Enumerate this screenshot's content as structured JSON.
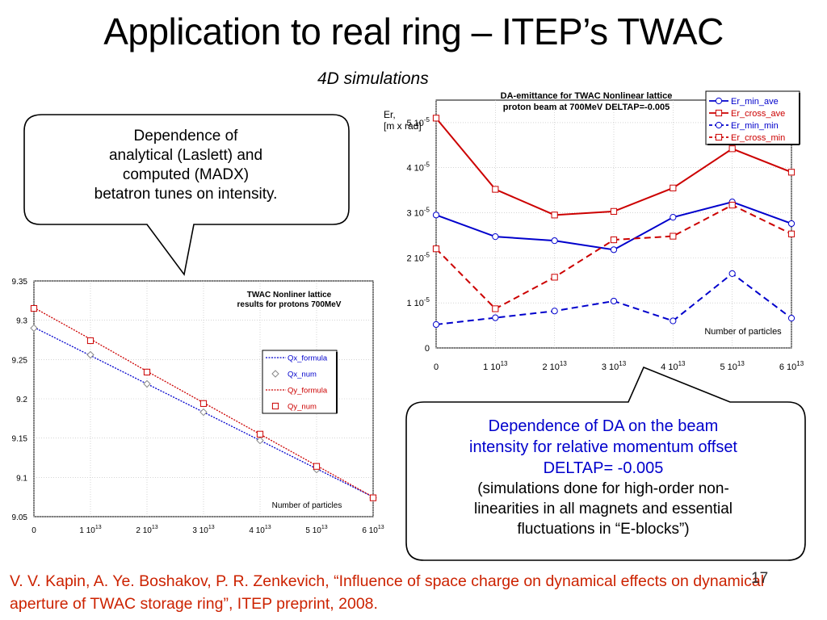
{
  "slide": {
    "title": "Application to real ring – ITEP’s TWAC",
    "subtitle": "4D simulations",
    "page_number": "17",
    "reference": "V. V. Kapin, A. Ye. Boshakov, P. R. Zenkevich, “Influence of space charge on dynamical effects on dynamical aperture of TWAC storage ring”, ITEP preprint, 2008."
  },
  "callout_left": {
    "lines": [
      "Dependence of",
      "analytical (Laslett) and",
      "computed (MADX)",
      "betatron tunes on intensity."
    ]
  },
  "callout_right": {
    "blue_lines": [
      "Dependence of DA on the beam",
      "intensity for relative momentum offset",
      "DELTAP=  -0.005"
    ],
    "black_lines": [
      "(simulations done for high-order non-",
      "linearities in all magnets and essential",
      "fluctuations in “E-blocks”)"
    ]
  },
  "colors": {
    "blue": "#0000cc",
    "red": "#cc0000",
    "reference": "#cc2200"
  },
  "chart_data": [
    {
      "type": "line",
      "title": "TWAC Nonliner lattice\nresults for protons 700MeV",
      "xlabel": "Number of particles",
      "ylabel": "",
      "x": [
        0,
        10000000000000.0,
        20000000000000.0,
        30000000000000.0,
        40000000000000.0,
        50000000000000.0,
        60000000000000.0
      ],
      "xticks": [
        {
          "pre": "0",
          "sup": ""
        },
        {
          "pre": "1 10",
          "sup": "13"
        },
        {
          "pre": "2 10",
          "sup": "13"
        },
        {
          "pre": "3 10",
          "sup": "13"
        },
        {
          "pre": "4 10",
          "sup": "13"
        },
        {
          "pre": "5 10",
          "sup": "13"
        },
        {
          "pre": "6 10",
          "sup": "13"
        }
      ],
      "yticks": [
        "9.05",
        "9.1",
        "9.15",
        "9.2",
        "9.25",
        "9.3",
        "9.35"
      ],
      "ylim": [
        9.05,
        9.35
      ],
      "xlim": [
        0,
        60000000000000.0
      ],
      "legend_position": "right",
      "series": [
        {
          "name": "Qx_formula",
          "color": "#0000cc",
          "style": "dotted-line",
          "values": [
            9.291,
            9.255,
            9.219,
            9.183,
            9.147,
            9.111,
            9.075
          ]
        },
        {
          "name": "Qx_num",
          "color": "#0000cc",
          "style": "diamond-marker",
          "values": [
            9.29,
            9.256,
            9.219,
            9.183,
            9.147,
            9.11,
            9.074
          ]
        },
        {
          "name": "Qy_formula",
          "color": "#cc0000",
          "style": "dotted-line",
          "values": [
            9.316,
            9.276,
            9.235,
            9.195,
            9.155,
            9.115,
            9.075
          ]
        },
        {
          "name": "Qy_num",
          "color": "#cc0000",
          "style": "square-marker",
          "values": [
            9.315,
            9.274,
            9.234,
            9.194,
            9.155,
            9.114,
            9.074
          ]
        }
      ]
    },
    {
      "type": "line",
      "title": "DA-emittance  for TWAC Nonlinear lattice\nproton beam at 700MeV DELTAP=-0.005",
      "xlabel": "Number of particles",
      "ylabel": "Er,\n[m x rad]",
      "x": [
        0,
        10000000000000.0,
        20000000000000.0,
        30000000000000.0,
        40000000000000.0,
        50000000000000.0,
        60000000000000.0
      ],
      "xticks": [
        {
          "pre": "0",
          "sup": ""
        },
        {
          "pre": "1 10",
          "sup": "13"
        },
        {
          "pre": "2 10",
          "sup": "13"
        },
        {
          "pre": "3 10",
          "sup": "13"
        },
        {
          "pre": "4 10",
          "sup": "13"
        },
        {
          "pre": "5 10",
          "sup": "13"
        },
        {
          "pre": "6 10",
          "sup": "13"
        }
      ],
      "yticks": [
        {
          "pre": "0",
          "sup": ""
        },
        {
          "pre": "1 10",
          "sup": "-5"
        },
        {
          "pre": "2 10",
          "sup": "-5"
        },
        {
          "pre": "3 10",
          "sup": "-5"
        },
        {
          "pre": "4 10",
          "sup": "-5"
        },
        {
          "pre": "5 10",
          "sup": "-5"
        }
      ],
      "ylim": [
        0,
        5.5e-05
      ],
      "xlim": [
        0,
        60000000000000.0
      ],
      "legend_position": "top-right",
      "series": [
        {
          "name": "Er_min_ave",
          "color": "#0000cc",
          "style": "solid-circle",
          "values": [
            2.95e-05,
            2.47e-05,
            2.38e-05,
            2.18e-05,
            2.9e-05,
            3.24e-05,
            2.76e-05
          ]
        },
        {
          "name": "Er_cross_ave",
          "color": "#cc0000",
          "style": "solid-square",
          "values": [
            5.1e-05,
            3.52e-05,
            2.95e-05,
            3.03e-05,
            3.55e-05,
            4.42e-05,
            3.9e-05
          ]
        },
        {
          "name": "Er_min_min",
          "color": "#0000cc",
          "style": "dashed-circle",
          "values": [
            5.2e-06,
            6.7e-06,
            8.2e-06,
            1.04e-05,
            6e-06,
            1.65e-05,
            6.6e-06
          ]
        },
        {
          "name": "Er_cross_min",
          "color": "#cc0000",
          "style": "dashed-square",
          "values": [
            2.2e-05,
            8.7e-06,
            1.57e-05,
            2.4e-05,
            2.48e-05,
            3.17e-05,
            2.53e-05
          ]
        }
      ]
    }
  ]
}
